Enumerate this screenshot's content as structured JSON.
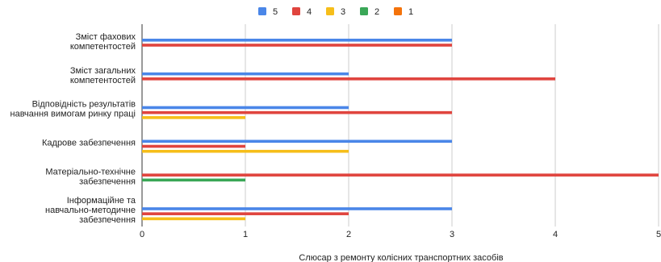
{
  "chart_data": {
    "type": "bar",
    "orientation": "horizontal",
    "title": "",
    "xlabel": "Слюсар з ремонту колісних транспортних засобів",
    "ylabel": "",
    "xlim": [
      0,
      5
    ],
    "x_ticks": [
      0,
      1,
      2,
      3,
      4,
      5
    ],
    "grid": "vertical",
    "legend_position": "top-center",
    "categories": [
      [
        "Зміст фахових",
        "компетентостей"
      ],
      [
        "Зміст загальних",
        "компетентостей"
      ],
      [
        "Відповідність результатів",
        "навчання вимогам ринку праці"
      ],
      [
        "Кадрове забезпечення"
      ],
      [
        "Матеріально-технічне",
        "забезпечення"
      ],
      [
        "Інформаційне та",
        "навчально-методичне",
        "забезпечення"
      ]
    ],
    "series": [
      {
        "name": "5",
        "color": "#4a86e8",
        "values": [
          3,
          2,
          2,
          3,
          0,
          3
        ]
      },
      {
        "name": "4",
        "color": "#e0443e",
        "values": [
          3,
          4,
          3,
          1,
          5,
          2
        ]
      },
      {
        "name": "3",
        "color": "#f6be1a",
        "values": [
          0,
          0,
          1,
          2,
          0,
          1
        ]
      },
      {
        "name": "2",
        "color": "#3aa757",
        "values": [
          0,
          0,
          0,
          0,
          1,
          0
        ]
      },
      {
        "name": "1",
        "color": "#f4730b",
        "values": [
          0,
          0,
          0,
          0,
          0,
          0
        ]
      }
    ]
  }
}
